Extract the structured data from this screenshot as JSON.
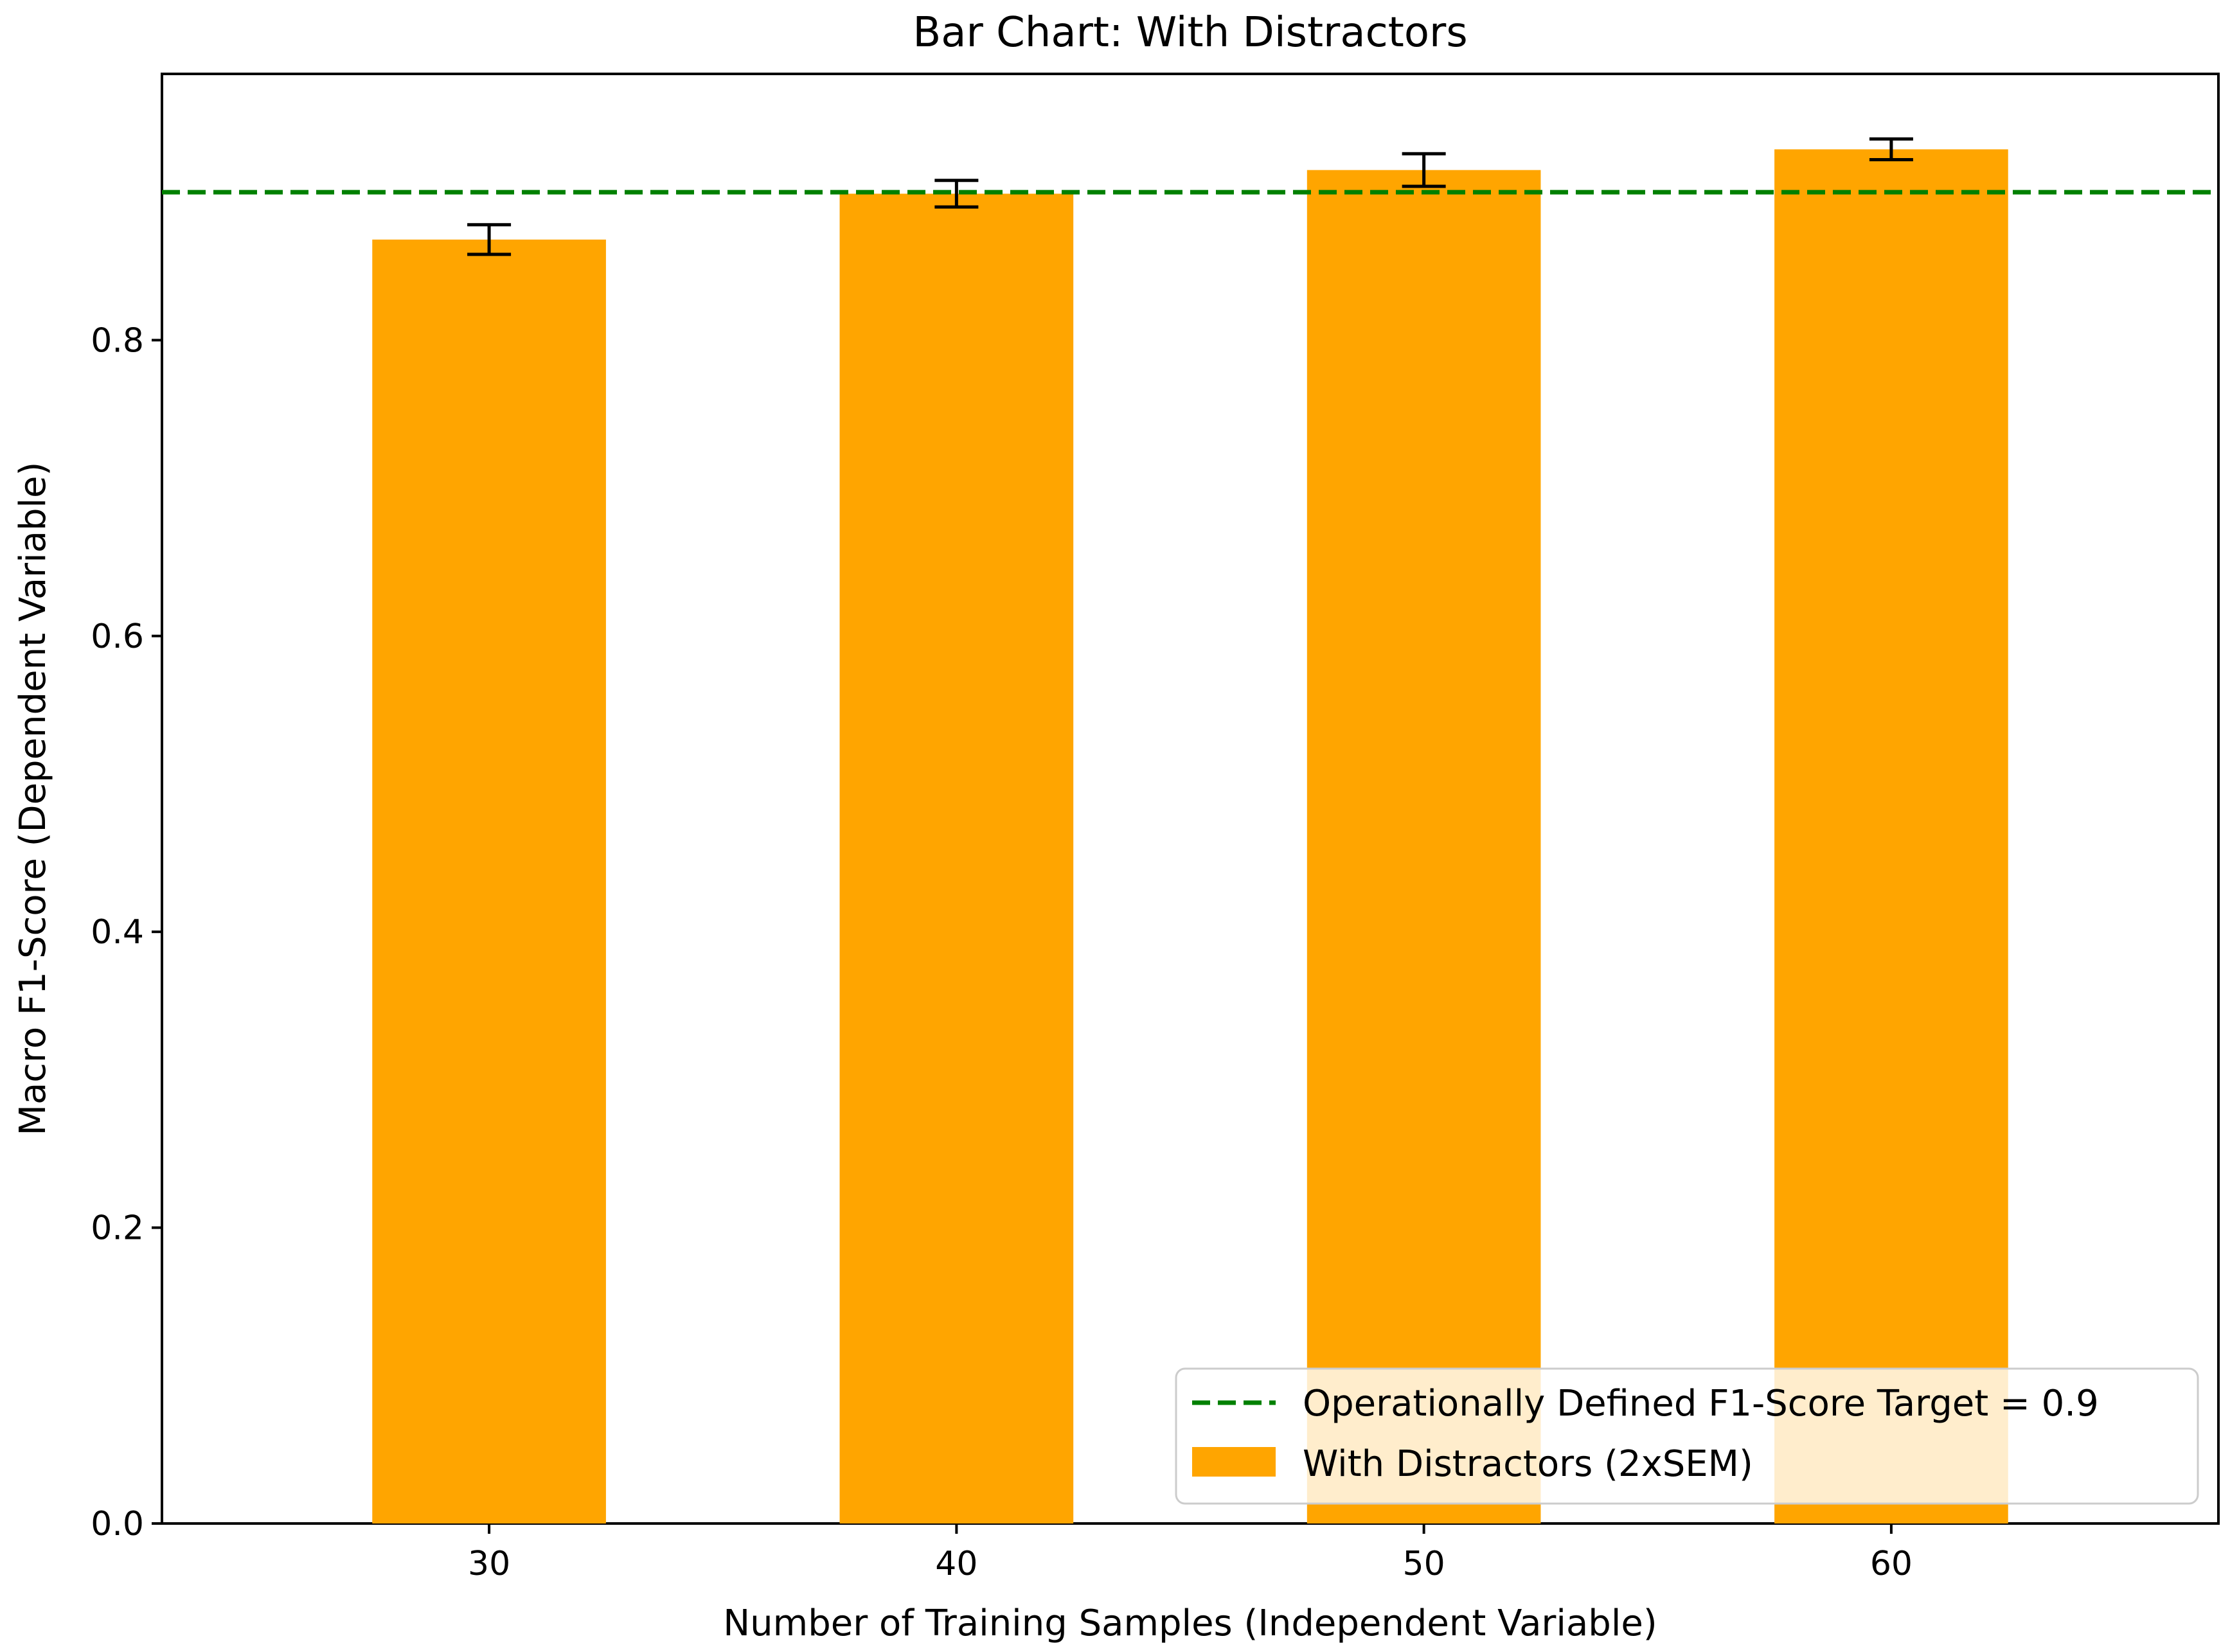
{
  "chart_data": {
    "type": "bar",
    "title": "Bar Chart: With Distractors",
    "xlabel": "Number of Training Samples (Independent Variable)",
    "ylabel": "Macro F1-Score (Dependent Variable)",
    "categories": [
      "30",
      "40",
      "50",
      "60"
    ],
    "series": [
      {
        "name": "With Distractors (2xSEM)",
        "values": [
          0.868,
          0.899,
          0.915,
          0.929
        ],
        "errors": [
          0.01,
          0.009,
          0.011,
          0.007
        ],
        "color": "#FFA500"
      }
    ],
    "reference_line": {
      "label": "Operationally Defined F1-Score Target = 0.9",
      "value": 0.9,
      "color": "#008000",
      "style": "dashed"
    },
    "ylim": [
      0,
      0.98
    ],
    "yticks": [
      0.0,
      0.2,
      0.4,
      0.6,
      0.8
    ],
    "ytick_labels": [
      "0.0",
      "0.2",
      "0.4",
      "0.6",
      "0.8"
    ],
    "grid": false,
    "legend_position": "lower-right"
  }
}
